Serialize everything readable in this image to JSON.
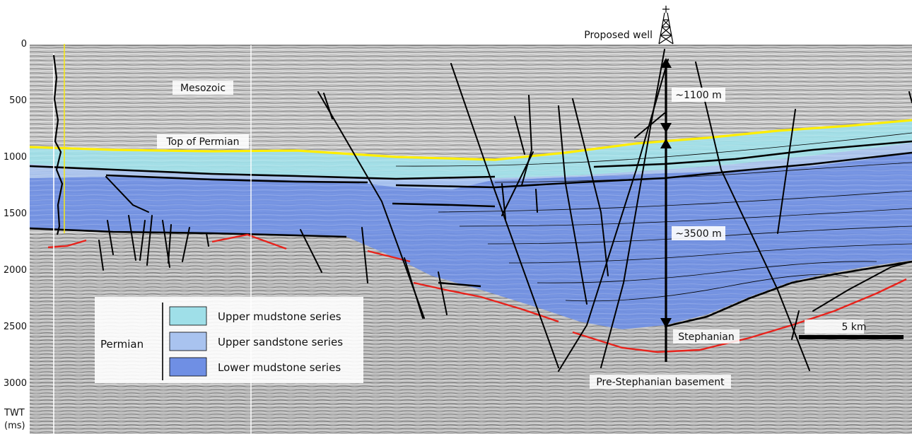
{
  "well": {
    "label": "Proposed well"
  },
  "axis": {
    "ticks": [
      "0",
      "500",
      "1000",
      "1500",
      "2000",
      "2500",
      "3000"
    ],
    "label_line1": "TWT",
    "label_line2": "(ms)"
  },
  "annotations": {
    "mesozoic": "Mesozoic",
    "top_permian": "Top of Permian",
    "thickness_upper": "~1100 m",
    "thickness_lower": "~3500 m",
    "stephanian": "Stephanian",
    "basement": "Pre-Stephanian basement"
  },
  "scale_bar": {
    "label": "5 km"
  },
  "legend": {
    "group": "Permian",
    "items": [
      {
        "label": "Upper mudstone series",
        "color": "#9fdfe8"
      },
      {
        "label": "Upper sandstone series",
        "color": "#a9c3ef"
      },
      {
        "label": "Lower mudstone series",
        "color": "#6f8fe4"
      }
    ]
  },
  "colors": {
    "top_permian_horizon": "#ffee00",
    "base_horizon": "#e8221b",
    "faults": "#000000"
  }
}
